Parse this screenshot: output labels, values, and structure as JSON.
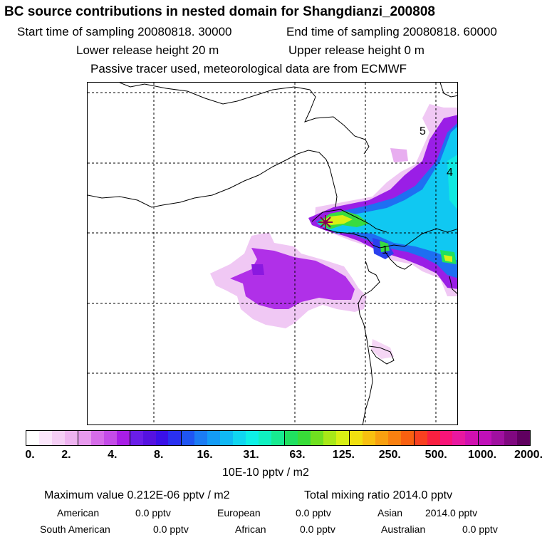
{
  "header": {
    "title": "BC  source contributions in nested domain for Shangdianzi_200808",
    "start_time": "Start time of sampling 20080818. 30000",
    "end_time": "End time of sampling 20080818. 60000",
    "lower_release": "Lower release height   20 m",
    "upper_release": "Upper release height    0 m",
    "tracer_note": "Passive tracer used, meteorological data are from ECMWF"
  },
  "map": {
    "station_marker": "station-star",
    "contour_labels": [
      "5",
      "4",
      "1"
    ]
  },
  "colorbar": {
    "colors": [
      "#ffffff",
      "#fbe6fb",
      "#f5cef5",
      "#eeb3f0",
      "#e89aee",
      "#d66ce9",
      "#c44be8",
      "#a81ee6",
      "#6a1ee8",
      "#5512e0",
      "#3a10e8",
      "#2a30f0",
      "#1f55f2",
      "#1b7cf4",
      "#149cf6",
      "#10b8f4",
      "#10d6f0",
      "#0ef0e6",
      "#10f0c0",
      "#18ea90",
      "#20e060",
      "#38dc38",
      "#70e020",
      "#a8e818",
      "#d8f014",
      "#f0e010",
      "#f8c010",
      "#f8a010",
      "#f88010",
      "#f86010",
      "#f84020",
      "#f82040",
      "#f81478",
      "#e818a0",
      "#d010b0",
      "#c010b8",
      "#a010a0",
      "#800880",
      "#600060"
    ],
    "divisions": [
      4,
      8,
      12,
      20,
      25,
      30,
      35,
      39
    ],
    "tick_labels": [
      "0.",
      "2.",
      "4.",
      "8.",
      "16.",
      "31.",
      "63.",
      "125.",
      "250.",
      "500.",
      "1000.",
      "2000."
    ],
    "units": "10E-10 pptv / m2"
  },
  "footer": {
    "max_value": "Maximum value  0.212E-06 pptv / m2",
    "total_mixing": "Total mixing ratio     2014.0 pptv",
    "regions": [
      {
        "label": "American",
        "value": "0.0 pptv"
      },
      {
        "label": "European",
        "value": "0.0 pptv"
      },
      {
        "label": "Asian",
        "value": "2014.0 pptv"
      },
      {
        "label": "South American",
        "value": "0.0 pptv"
      },
      {
        "label": "African",
        "value": "0.0 pptv"
      },
      {
        "label": "Australian",
        "value": "0.0 pptv"
      }
    ]
  }
}
